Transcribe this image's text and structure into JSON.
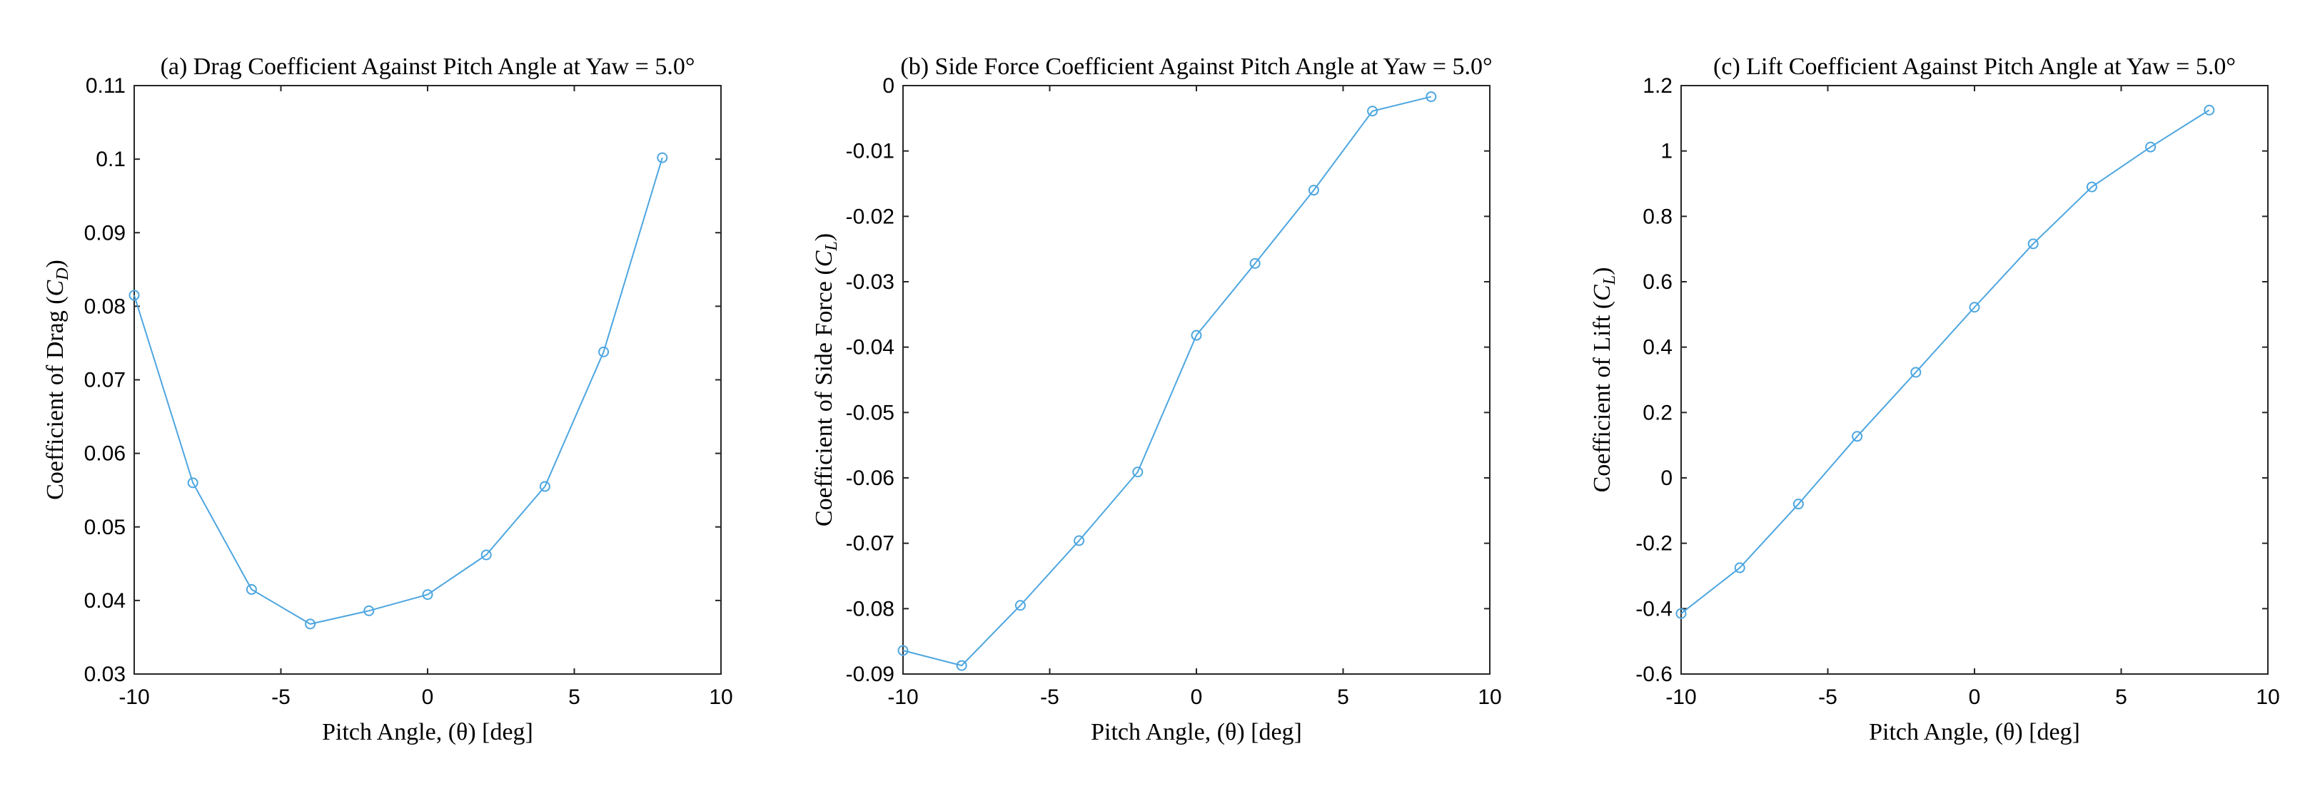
{
  "chart_data": [
    {
      "type": "line",
      "title": "(a) Drag Coefficient Against Pitch Angle at Yaw = 5.0°",
      "xlabel": "Pitch Angle, (θ) [deg]",
      "ylabel_text": "Coefficient of Drag (",
      "ylabel_symbol": "C",
      "ylabel_subscript": "D",
      "ylabel_close": ")",
      "xlim": [
        -10,
        10
      ],
      "ylim": [
        0.03,
        0.11
      ],
      "xticks": [
        -10,
        -5,
        0,
        5,
        10
      ],
      "xtick_labels": [
        "-10",
        "-5",
        "0",
        "5",
        "10"
      ],
      "yticks": [
        0.03,
        0.04,
        0.05,
        0.06,
        0.07,
        0.08,
        0.09,
        0.1,
        0.11
      ],
      "ytick_labels": [
        "0.03",
        "0.04",
        "0.05",
        "0.06",
        "0.07",
        "0.08",
        "0.09",
        "0.1",
        "0.11"
      ],
      "grid": true,
      "x": [
        -10,
        -8,
        -6,
        -4,
        -2,
        0,
        2,
        4,
        6,
        8
      ],
      "y": [
        0.0815,
        0.056,
        0.0415,
        0.0368,
        0.0386,
        0.0408,
        0.0462,
        0.0555,
        0.0738,
        0.1002
      ],
      "color": "#4da6e0",
      "marker": "circle"
    },
    {
      "type": "line",
      "title": "(b) Side Force Coefficient Against Pitch Angle at Yaw = 5.0°",
      "xlabel": "Pitch Angle, (θ) [deg]",
      "ylabel_text": "Coefficient of Side Force (",
      "ylabel_symbol": "C",
      "ylabel_subscript": "L",
      "ylabel_close": ")",
      "xlim": [
        -10,
        10
      ],
      "ylim": [
        -0.09,
        0
      ],
      "xticks": [
        -10,
        -5,
        0,
        5,
        10
      ],
      "xtick_labels": [
        "-10",
        "-5",
        "0",
        "5",
        "10"
      ],
      "yticks": [
        -0.09,
        -0.08,
        -0.07,
        -0.06,
        -0.05,
        -0.04,
        -0.03,
        -0.02,
        -0.01,
        0
      ],
      "ytick_labels": [
        "-0.09",
        "-0.08",
        "-0.07",
        "-0.06",
        "-0.05",
        "-0.04",
        "-0.03",
        "-0.02",
        "-0.01",
        "0"
      ],
      "grid": true,
      "x": [
        -10,
        -8,
        -6,
        -4,
        -2,
        0,
        2,
        4,
        6,
        8
      ],
      "y": [
        -0.0864,
        -0.0887,
        -0.0795,
        -0.0696,
        -0.0591,
        -0.0382,
        -0.0272,
        -0.016,
        -0.0039,
        -0.0017
      ],
      "color": "#4da6e0",
      "marker": "circle"
    },
    {
      "type": "line",
      "title": "(c) Lift Coefficient Against Pitch Angle at Yaw = 5.0°",
      "xlabel": "Pitch Angle, (θ) [deg]",
      "ylabel_text": "Coefficient of Lift (",
      "ylabel_symbol": "C",
      "ylabel_subscript": "L",
      "ylabel_close": ")",
      "xlim": [
        -10,
        10
      ],
      "ylim": [
        -0.6,
        1.2
      ],
      "xticks": [
        -10,
        -5,
        0,
        5,
        10
      ],
      "xtick_labels": [
        "-10",
        "-5",
        "0",
        "5",
        "10"
      ],
      "yticks": [
        -0.6,
        -0.4,
        -0.2,
        0,
        0.2,
        0.4,
        0.6,
        0.8,
        1,
        1.2
      ],
      "ytick_labels": [
        "-0.6",
        "-0.4",
        "-0.2",
        "0",
        "0.2",
        "0.4",
        "0.6",
        "0.8",
        "1",
        "1.2"
      ],
      "grid": true,
      "x": [
        -10,
        -8,
        -6,
        -4,
        -2,
        0,
        2,
        4,
        6,
        8
      ],
      "y": [
        -0.415,
        -0.275,
        -0.08,
        0.127,
        0.323,
        0.522,
        0.716,
        0.89,
        1.012,
        1.125
      ],
      "color": "#4da6e0",
      "marker": "circle"
    }
  ]
}
